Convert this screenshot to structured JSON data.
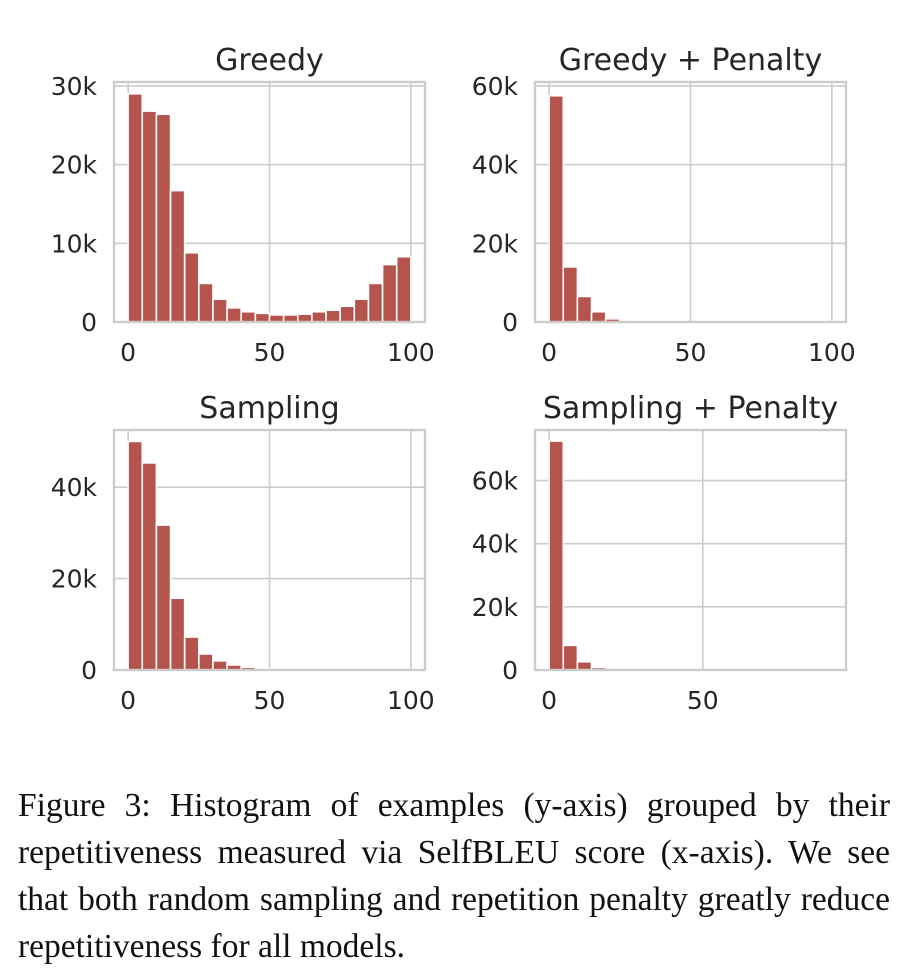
{
  "chart_data": [
    {
      "type": "bar",
      "title": "Greedy",
      "xlabel": "",
      "ylabel": "",
      "bin_edges": [
        0,
        5,
        10,
        15,
        20,
        25,
        30,
        35,
        40,
        45,
        50,
        55,
        60,
        65,
        70,
        75,
        80,
        85,
        90,
        95,
        100
      ],
      "values": [
        29000,
        26800,
        26400,
        16700,
        8800,
        4900,
        2900,
        1800,
        1300,
        1100,
        900,
        900,
        1000,
        1300,
        1500,
        2000,
        2900,
        4900,
        7300,
        8300
      ],
      "xlim": [
        -5,
        105
      ],
      "ylim": [
        0,
        30500
      ],
      "xticks": [
        0,
        50,
        100
      ],
      "xtick_labels": [
        "0",
        "50",
        "100"
      ],
      "yticks": [
        0,
        10000,
        20000,
        30000
      ],
      "ytick_labels": [
        "0",
        "10k",
        "20k",
        "30k"
      ],
      "grid": true,
      "color": "#b5534d"
    },
    {
      "type": "bar",
      "title": "Greedy + Penalty",
      "xlabel": "",
      "ylabel": "",
      "bin_edges": [
        0,
        5,
        10,
        15,
        20,
        25,
        30,
        35,
        40,
        45,
        50,
        55,
        60,
        65,
        70,
        75,
        80,
        85,
        90,
        95,
        100
      ],
      "values": [
        57500,
        14000,
        6500,
        2600,
        800,
        250,
        100,
        60,
        40,
        30,
        20,
        10,
        10,
        10,
        10,
        10,
        10,
        10,
        10,
        10
      ],
      "xlim": [
        -5,
        105
      ],
      "ylim": [
        0,
        61000
      ],
      "xticks": [
        0,
        50,
        100
      ],
      "xtick_labels": [
        "0",
        "50",
        "100"
      ],
      "yticks": [
        0,
        20000,
        40000,
        60000
      ],
      "ytick_labels": [
        "0",
        "20k",
        "40k",
        "60k"
      ],
      "grid": true,
      "color": "#b5534d"
    },
    {
      "type": "bar",
      "title": "Sampling",
      "xlabel": "",
      "ylabel": "",
      "bin_edges": [
        0,
        5,
        10,
        15,
        20,
        25,
        30,
        35,
        40,
        45,
        50,
        55,
        60,
        65,
        70,
        75,
        80,
        85,
        90,
        95,
        100
      ],
      "values": [
        50000,
        45300,
        31700,
        15700,
        7200,
        3500,
        2000,
        1100,
        600,
        300,
        150,
        80,
        50,
        30,
        20,
        10,
        10,
        10,
        10,
        10
      ],
      "xlim": [
        -5,
        105
      ],
      "ylim": [
        0,
        52500
      ],
      "xticks": [
        0,
        50,
        100
      ],
      "xtick_labels": [
        "0",
        "50",
        "100"
      ],
      "yticks": [
        0,
        20000,
        40000
      ],
      "ytick_labels": [
        "0",
        "20k",
        "40k"
      ],
      "grid": true,
      "color": "#b5534d"
    },
    {
      "type": "bar",
      "title": "Sampling + Penalty",
      "xlabel": "",
      "ylabel": "",
      "bin_edges": [
        0,
        4.6,
        9.2,
        13.8,
        18.4,
        23,
        27.6,
        32.2,
        36.8,
        41.4,
        46,
        50.6,
        55.2,
        59.8,
        64.4,
        69,
        73.6,
        78.2,
        82.8,
        87.4,
        92
      ],
      "values": [
        72500,
        7800,
        2600,
        800,
        250,
        100,
        50,
        30,
        20,
        10,
        10,
        10,
        10,
        10,
        10,
        10,
        10,
        10,
        10,
        10
      ],
      "xlim": [
        -4.6,
        96.6
      ],
      "ylim": [
        0,
        76000
      ],
      "xticks": [
        0,
        50
      ],
      "xtick_labels": [
        "0",
        "50"
      ],
      "yticks": [
        0,
        20000,
        40000,
        60000
      ],
      "ytick_labels": [
        "0",
        "20k",
        "40k",
        "60k"
      ],
      "grid": true,
      "color": "#b5534d"
    }
  ],
  "caption": "Figure 3: Histogram of examples (y-axis) grouped by their repetitiveness measured via SelfBLEU score (x-axis). We see that both random sampling and repetition penalty greatly reduce repetitiveness for all models."
}
